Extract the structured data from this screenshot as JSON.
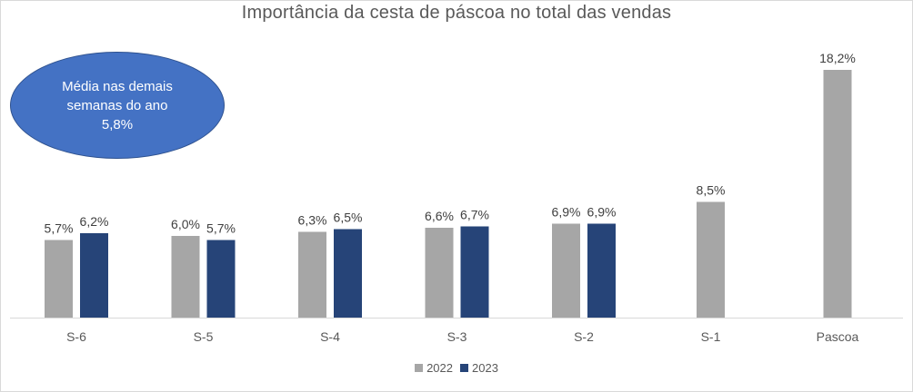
{
  "chart_data": {
    "type": "bar",
    "title": "Importância da cesta de páscoa no total das vendas",
    "categories": [
      "S-6",
      "S-5",
      "S-4",
      "S-3",
      "S-2",
      "S-1",
      "Pascoa"
    ],
    "series": [
      {
        "name": "2022",
        "color": "#a6a6a6",
        "values": [
          5.7,
          6.0,
          6.3,
          6.6,
          6.9,
          8.5,
          18.2
        ],
        "labels": [
          "5,7%",
          "6,0%",
          "6,3%",
          "6,6%",
          "6,9%",
          "8,5%",
          "18,2%"
        ]
      },
      {
        "name": "2023",
        "color": "#264478",
        "values": [
          6.2,
          5.7,
          6.5,
          6.7,
          6.9,
          null,
          null
        ],
        "labels": [
          "6,2%",
          "5,7%",
          "6,5%",
          "6,7%",
          "6,9%",
          "",
          ""
        ]
      }
    ],
    "ylim": [
      0,
      18.2
    ],
    "grid": false,
    "legend_position": "bottom",
    "annotation": {
      "lines": [
        "Média nas demais",
        "semanas do ano",
        "5,8%"
      ],
      "color": "#4472c4"
    }
  }
}
